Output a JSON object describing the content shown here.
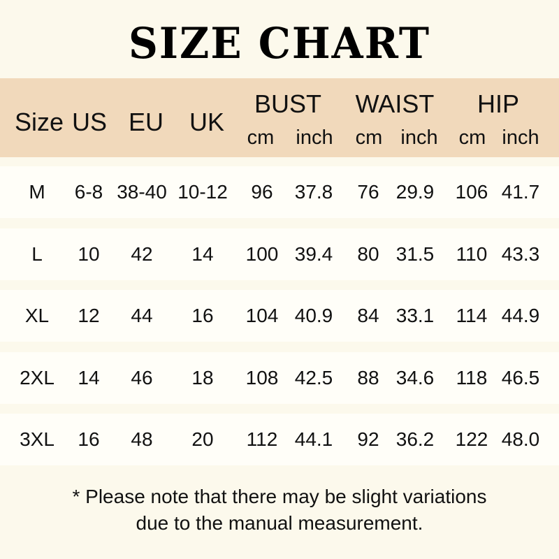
{
  "title": "SIZE CHART",
  "headers": {
    "size": "Size",
    "us": "US",
    "eu": "EU",
    "uk": "UK",
    "bust": "BUST",
    "waist": "WAIST",
    "hip": "HIP",
    "cm": "cm",
    "inch": "inch"
  },
  "rows": [
    [
      "M",
      "6-8",
      "38-40",
      "10-12",
      "96",
      "37.8",
      "76",
      "29.9",
      "106",
      "41.7"
    ],
    [
      "L",
      "10",
      "42",
      "14",
      "100",
      "39.4",
      "80",
      "31.5",
      "110",
      "43.3"
    ],
    [
      "XL",
      "12",
      "44",
      "16",
      "104",
      "40.9",
      "84",
      "33.1",
      "114",
      "44.9"
    ],
    [
      "2XL",
      "14",
      "46",
      "18",
      "108",
      "42.5",
      "88",
      "34.6",
      "118",
      "46.5"
    ],
    [
      "3XL",
      "16",
      "48",
      "20",
      "112",
      "44.1",
      "92",
      "36.2",
      "122",
      "48.0"
    ]
  ],
  "note": [
    "* Please note that there may be slight variations",
    "due to the manual measurement."
  ],
  "colors": {
    "background": "#fcf9ec",
    "header": "#f1d9bb",
    "row": "#fffef8"
  }
}
